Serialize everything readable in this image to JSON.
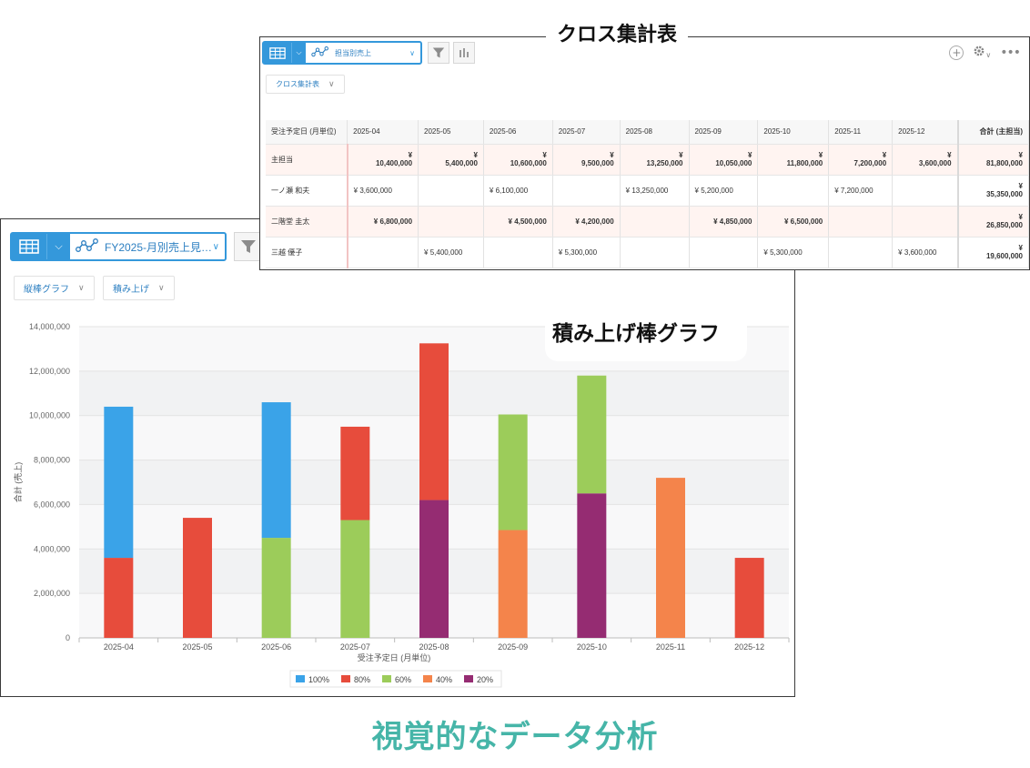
{
  "chart_window": {
    "view_name": "FY2025-月別売上見…",
    "chart_type_label": "縦棒グラフ",
    "stack_mode_label": "積み上げ",
    "callout": "積み上げ棒グラフ",
    "icons": {
      "table": "table-icon",
      "graph": "line-graph-icon",
      "filter": "funnel-icon"
    }
  },
  "chart_data": {
    "type": "bar",
    "stacked": true,
    "categories": [
      "2025-04",
      "2025-05",
      "2025-06",
      "2025-07",
      "2025-08",
      "2025-09",
      "2025-10",
      "2025-11",
      "2025-12"
    ],
    "series": [
      {
        "name": "100%",
        "color": "#3aa3e8",
        "values": [
          6800000,
          0,
          6100000,
          0,
          0,
          0,
          0,
          0,
          0
        ]
      },
      {
        "name": "80%",
        "color": "#e74c3c",
        "values": [
          3600000,
          5400000,
          0,
          4200000,
          7050000,
          0,
          0,
          0,
          3600000
        ]
      },
      {
        "name": "60%",
        "color": "#9ccc5a",
        "values": [
          0,
          0,
          4500000,
          5300000,
          0,
          5200000,
          5300000,
          0,
          0
        ]
      },
      {
        "name": "40%",
        "color": "#f4844b",
        "values": [
          0,
          0,
          0,
          0,
          0,
          4850000,
          0,
          7200000,
          0
        ]
      },
      {
        "name": "20%",
        "color": "#952c72",
        "values": [
          0,
          0,
          0,
          0,
          6200000,
          0,
          6500000,
          0,
          0
        ]
      }
    ],
    "stack_order_bottom_to_top": [
      "20%",
      "40%",
      "60%",
      "80%",
      "100%"
    ],
    "ylim": [
      0,
      14000000
    ],
    "yticks": [
      "0",
      "2,000,000",
      "4,000,000",
      "6,000,000",
      "8,000,000",
      "10,000,000",
      "12,000,000",
      "14,000,000"
    ],
    "xlabel": "受注予定日 (月単位)",
    "ylabel": "合計 (売上)",
    "legend": "bottom",
    "grid": true
  },
  "cross_window": {
    "title": "クロス集計表",
    "view_name": "担当別売上",
    "mode_label": "クロス集計表",
    "icons": {
      "table": "table-icon",
      "graph": "line-graph-icon",
      "filter": "funnel-icon",
      "chart": "bar-chart-icon",
      "add": "plus-icon",
      "settings": "gear-icon",
      "more": "more-icon"
    },
    "header": [
      "受注予定日 (月単位)",
      "2025-04",
      "2025-05",
      "2025-06",
      "2025-07",
      "2025-08",
      "2025-09",
      "2025-10",
      "2025-11",
      "2025-12",
      "合計 (主担当)"
    ],
    "rows": [
      {
        "label": "主担当",
        "highlight": true,
        "cells": [
          "¥|10,400,000",
          "¥|5,400,000",
          "¥|10,600,000",
          "¥|9,500,000",
          "¥|13,250,000",
          "¥|10,050,000",
          "¥|11,800,000",
          "¥|7,200,000",
          "¥|3,600,000"
        ],
        "total": "¥|81,800,000"
      },
      {
        "label": "一ノ瀬 和夫",
        "highlight": false,
        "cells": [
          "¥ 3,600,000",
          "",
          "¥ 6,100,000",
          "",
          "¥ 13,250,000",
          "¥ 5,200,000",
          "",
          "¥ 7,200,000",
          ""
        ],
        "total": "¥|35,350,000"
      },
      {
        "label": "二階堂 圭太",
        "highlight": true,
        "cells": [
          "¥ 6,800,000",
          "",
          "¥ 4,500,000",
          "¥ 4,200,000",
          "",
          "¥ 4,850,000",
          "¥ 6,500,000",
          "",
          ""
        ],
        "total": "¥|26,850,000"
      },
      {
        "label": "三越 優子",
        "highlight": false,
        "cells": [
          "",
          "¥ 5,400,000",
          "",
          "¥ 5,300,000",
          "",
          "",
          "¥ 5,300,000",
          "",
          "¥ 3,600,000"
        ],
        "total": "¥|19,600,000"
      }
    ]
  },
  "caption": "視覚的なデータ分析"
}
